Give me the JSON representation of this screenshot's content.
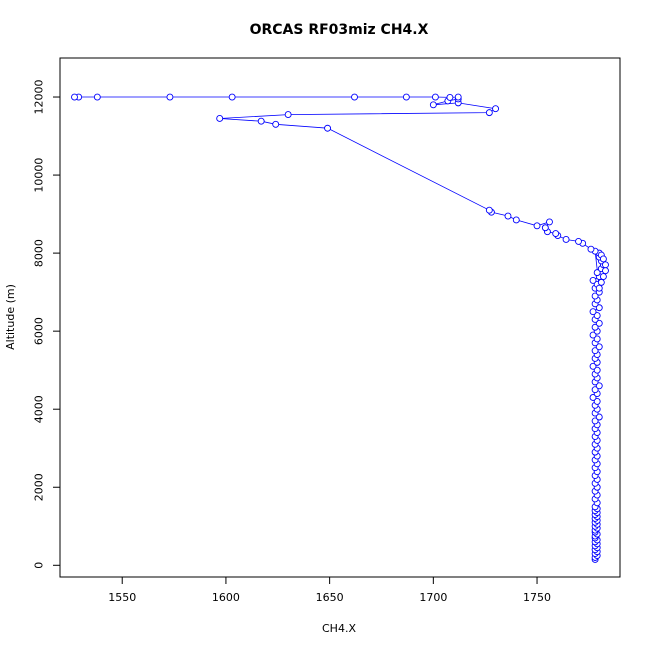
{
  "chart_data": {
    "type": "line",
    "title": "ORCAS RF03miz CH4.X",
    "xlabel": "CH4.X",
    "ylabel": "Altitude (m)",
    "xlim": [
      1520,
      1790
    ],
    "ylim": [
      -300,
      13000
    ],
    "x_ticks": [
      1550,
      1600,
      1650,
      1700,
      1750
    ],
    "y_ticks": [
      0,
      2000,
      4000,
      6000,
      8000,
      10000,
      12000
    ],
    "series_color": "#0000ff",
    "grid": false,
    "legend": "none",
    "series": [
      {
        "x": [
          1778,
          1778,
          1779,
          1778,
          1779,
          1778,
          1779,
          1778,
          1779,
          1778,
          1779,
          1778,
          1778,
          1779,
          1778,
          1778,
          1779,
          1778,
          1779,
          1778,
          1779,
          1778,
          1779,
          1778,
          1779,
          1778,
          1779,
          1778,
          1779,
          1778,
          1779,
          1778,
          1779,
          1778,
          1779,
          1778,
          1779,
          1778,
          1779,
          1778,
          1779,
          1778,
          1779,
          1778,
          1779,
          1778,
          1779,
          1778,
          1779,
          1778,
          1780,
          1778,
          1779,
          1778,
          1779,
          1777,
          1779,
          1778,
          1780,
          1778,
          1779,
          1778,
          1779,
          1777,
          1779,
          1778,
          1779,
          1778,
          1780,
          1778,
          1779,
          1777,
          1779,
          1778,
          1780,
          1778,
          1779,
          1777,
          1780,
          1778,
          1779,
          1778,
          1780,
          1778,
          1779,
          1777,
          1780,
          1779,
          1781,
          1782,
          1781,
          1780,
          1780,
          1781,
          1782,
          1783,
          1783,
          1782,
          1781,
          1780,
          1778,
          1776,
          1772,
          1770,
          1764,
          1760,
          1759,
          1755,
          1754,
          1756,
          1750,
          1740,
          1736,
          1728,
          1727,
          1649,
          1624,
          1617,
          1597,
          1630,
          1727,
          1730,
          1712,
          1700,
          1707,
          1712,
          1712,
          1708,
          1701,
          1687,
          1662,
          1603,
          1573,
          1538,
          1529,
          1527
        ],
        "y": [
          150,
          200,
          250,
          300,
          350,
          400,
          450,
          500,
          550,
          600,
          650,
          700,
          750,
          800,
          850,
          900,
          950,
          1000,
          1050,
          1100,
          1150,
          1200,
          1250,
          1300,
          1350,
          1400,
          1450,
          1500,
          1600,
          1700,
          1800,
          1900,
          2000,
          2100,
          2200,
          2300,
          2400,
          2500,
          2600,
          2700,
          2800,
          2900,
          3000,
          3100,
          3200,
          3300,
          3400,
          3500,
          3600,
          3700,
          3800,
          3900,
          4000,
          4100,
          4200,
          4300,
          4400,
          4500,
          4600,
          4700,
          4800,
          4900,
          5000,
          5100,
          5200,
          5300,
          5400,
          5500,
          5600,
          5700,
          5800,
          5900,
          6000,
          6100,
          6200,
          6300,
          6400,
          6500,
          6600,
          6700,
          6800,
          6900,
          7000,
          7100,
          7200,
          7300,
          7400,
          7500,
          7600,
          7700,
          7800,
          7900,
          8000,
          7950,
          7850,
          7700,
          7550,
          7400,
          7250,
          7100,
          8050,
          8100,
          8250,
          8300,
          8350,
          8450,
          8500,
          8550,
          8650,
          8800,
          8700,
          8850,
          8950,
          9050,
          9100,
          11200,
          11300,
          11380,
          11450,
          11550,
          11600,
          11700,
          11850,
          11800,
          11900,
          11950,
          12000,
          11990,
          12000,
          12000,
          12000,
          12000,
          12000,
          12000,
          12000,
          12000
        ]
      }
    ]
  }
}
